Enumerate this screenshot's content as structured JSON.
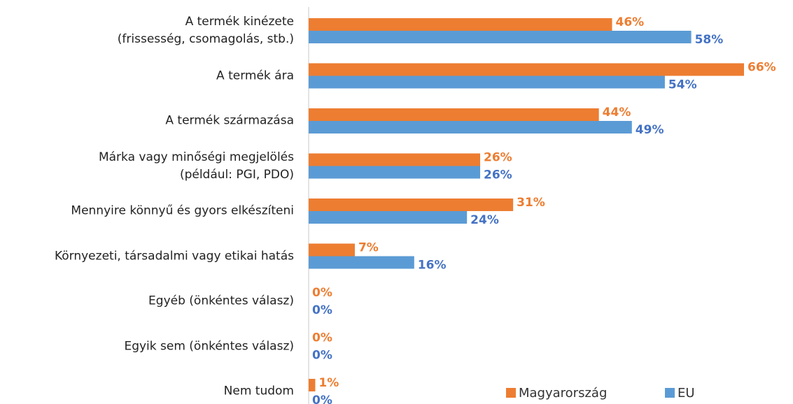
{
  "chart_data": {
    "type": "bar",
    "orientation": "horizontal",
    "categories": [
      "A termék kinézete\n(frissesség, csomagolás, stb.)",
      "A termék ára",
      "A termék származása",
      "Márka vagy minőségi megjelölés\n(például: PGI, PDO)",
      "Mennyire könnyű és gyors elkészíteni",
      "Környezeti, társadalmi vagy etikai hatás",
      "Egyéb (önkéntes válasz)",
      "Egyik sem (önkéntes válasz)",
      "Nem tudom"
    ],
    "series": [
      {
        "name": "Magyarország",
        "color": "#ed7d31",
        "label_color": "#ed7d31",
        "values": [
          46,
          66,
          44,
          26,
          31,
          7,
          0,
          0,
          1
        ],
        "value_labels": [
          "46%",
          "66%",
          "44%",
          "26%",
          "31%",
          "7%",
          "0%",
          "0%",
          "1%"
        ]
      },
      {
        "name": "EU",
        "color": "#5b9bd5",
        "label_color": "#4472c4",
        "values": [
          58,
          54,
          49,
          26,
          24,
          16,
          0,
          0,
          0
        ],
        "value_labels": [
          "58%",
          "54%",
          "49%",
          "26%",
          "24%",
          "16%",
          "0%",
          "0%",
          "0%"
        ]
      }
    ],
    "legend": "bottom-right"
  }
}
